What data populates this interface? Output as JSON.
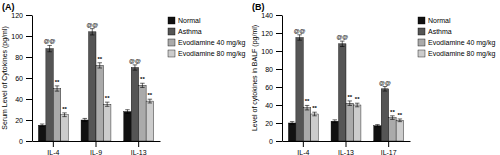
{
  "chart_data": [
    {
      "type": "bar",
      "title": "(A)",
      "ylabel": "Serum Level of Cytokines (pg/ml)",
      "categories": [
        "IL-4",
        "IL-9",
        "IL-13"
      ],
      "series": [
        {
          "name": "Normal",
          "color": "#111111",
          "values": [
            15,
            20,
            28
          ],
          "errors": [
            1.2,
            1.5,
            1.8
          ]
        },
        {
          "name": "Asthma",
          "color": "#555555",
          "values": [
            88,
            104,
            70
          ],
          "errors": [
            3.0,
            3.0,
            2.5
          ],
          "annotation": "@@"
        },
        {
          "name": "Evodiamine 40 mg/kg",
          "color": "#aaaaaa",
          "values": [
            50,
            72,
            53
          ],
          "errors": [
            2.5,
            2.5,
            2.0
          ],
          "annotation": "**"
        },
        {
          "name": "Evodiamine 80 mg/kg",
          "color": "#cccccc",
          "values": [
            25,
            35,
            38
          ],
          "errors": [
            1.8,
            2.0,
            1.8
          ],
          "annotation": "**"
        }
      ],
      "ylim": [
        0,
        120
      ],
      "yticks": [
        0,
        20,
        40,
        60,
        80,
        100,
        120
      ],
      "legend": "right"
    },
    {
      "type": "bar",
      "title": "(B)",
      "ylabel": "Level of cytokines in BALF (pg/ml)",
      "categories": [
        "IL-4",
        "IL-13",
        "IL-17"
      ],
      "series": [
        {
          "name": "Normal",
          "color": "#111111",
          "values": [
            20,
            22,
            17
          ],
          "errors": [
            1.5,
            1.5,
            1.2
          ]
        },
        {
          "name": "Asthma",
          "color": "#555555",
          "values": [
            115,
            108,
            58
          ],
          "errors": [
            3.0,
            3.0,
            2.5
          ],
          "annotation": "@@"
        },
        {
          "name": "Evodiamine 40 mg/kg",
          "color": "#aaaaaa",
          "values": [
            37,
            42,
            26
          ],
          "errors": [
            2.5,
            2.5,
            2.0
          ],
          "annotation": "**"
        },
        {
          "name": "Evodiamine 80 mg/kg",
          "color": "#cccccc",
          "values": [
            30,
            40,
            23
          ],
          "errors": [
            2.0,
            2.0,
            1.5
          ],
          "annotation": "**"
        }
      ],
      "ylim": [
        0,
        140
      ],
      "yticks": [
        0,
        20,
        40,
        60,
        80,
        100,
        120,
        140
      ],
      "legend": "right"
    }
  ]
}
